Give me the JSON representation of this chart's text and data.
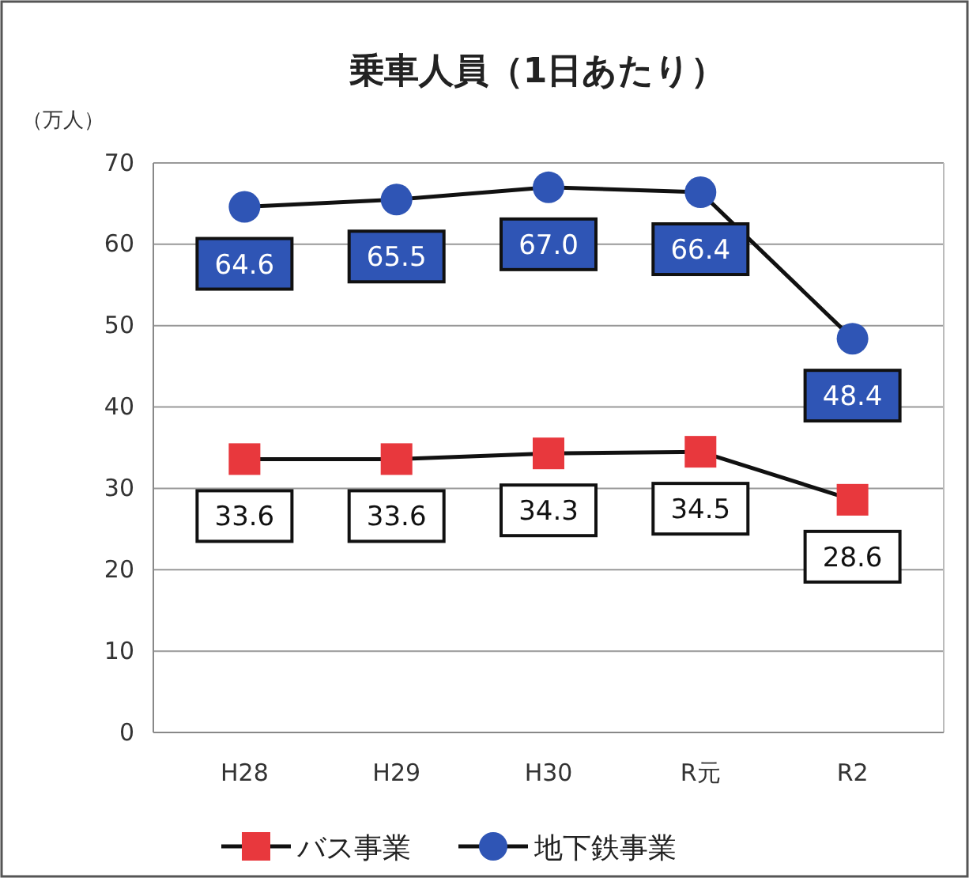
{
  "chart_data": {
    "type": "line",
    "title": "乗車人員（1日あたり）",
    "ylabel": "（万人）",
    "categories": [
      "H28",
      "H29",
      "H30",
      "R元",
      "R2"
    ],
    "series": [
      {
        "name": "バス事業",
        "color": "#e8383d",
        "marker": "square",
        "values": [
          33.6,
          33.6,
          34.3,
          34.5,
          28.6
        ],
        "value_labels": [
          "33.6",
          "33.6",
          "34.3",
          "34.5",
          "28.6"
        ]
      },
      {
        "name": "地下鉄事業",
        "color": "#2f55b5",
        "marker": "circle",
        "values": [
          64.6,
          65.5,
          67.0,
          66.4,
          48.4
        ],
        "value_labels": [
          "64.6",
          "65.5",
          "67.0",
          "66.4",
          "48.4"
        ]
      }
    ],
    "ylim": [
      0,
      70
    ],
    "yticks": [
      0,
      10,
      20,
      30,
      40,
      50,
      60,
      70
    ],
    "grid": "y",
    "legend": "bottom",
    "line_style": "solid"
  }
}
